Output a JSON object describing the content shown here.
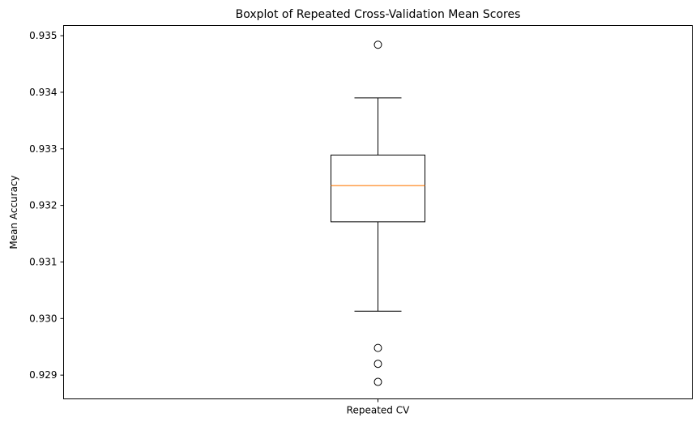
{
  "chart_data": {
    "type": "boxplot",
    "title": "Boxplot of Repeated Cross-Validation Mean Scores",
    "xlabel": "",
    "ylabel": "Mean Accuracy",
    "categories": [
      "Repeated CV"
    ],
    "ylim": [
      0.92858,
      0.93518
    ],
    "yticks": [
      0.929,
      0.93,
      0.931,
      0.932,
      0.933,
      0.934,
      0.935
    ],
    "ytick_labels": [
      "0.929",
      "0.930",
      "0.931",
      "0.932",
      "0.933",
      "0.934",
      "0.935"
    ],
    "box": {
      "whisker_low": 0.93013,
      "q1": 0.93171,
      "median": 0.93235,
      "q3": 0.93289,
      "whisker_high": 0.9339
    },
    "outliers": [
      0.93484,
      0.92948,
      0.9292,
      0.92888
    ],
    "grid": false,
    "legend": "none",
    "colors": {
      "box": "#000000",
      "median": "#ff7f0e",
      "outlier": "#000000"
    }
  }
}
